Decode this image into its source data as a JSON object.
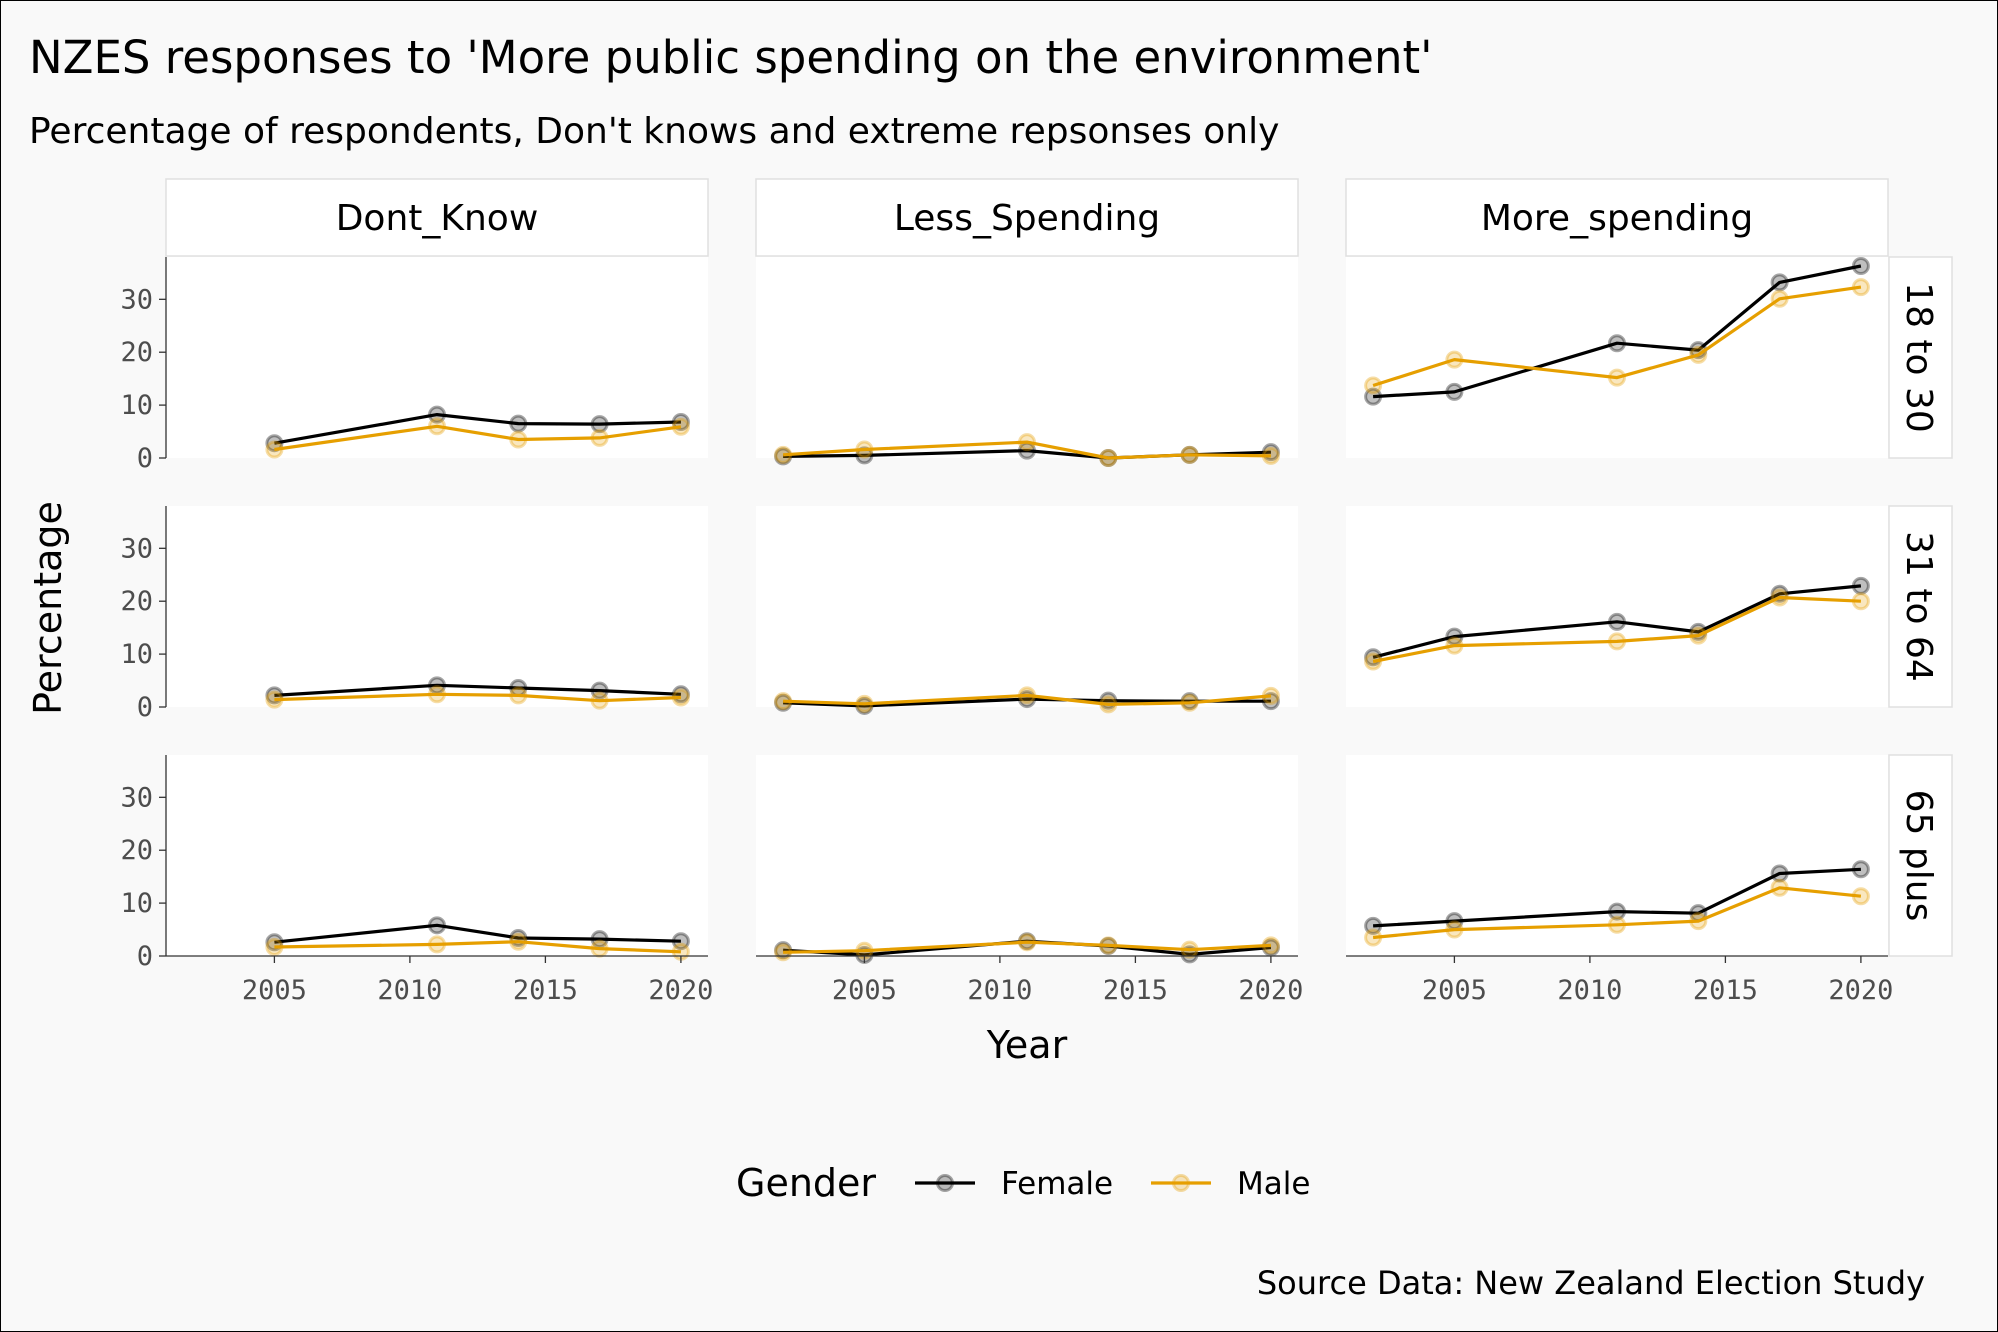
{
  "chart_data": {
    "type": "line",
    "title": "NZES responses to 'More public spending on the environment'",
    "subtitle": "Percentage of respondents, Don't knows and extreme repsonses only",
    "caption": "Source Data: New Zealand Election Study",
    "xlabel": "Year",
    "ylabel": "Percentage",
    "xlim": [
      2001,
      2021
    ],
    "ylim": [
      0,
      38
    ],
    "x_ticks": [
      2005,
      2010,
      2015,
      2020
    ],
    "y_ticks": [
      0,
      10,
      20,
      30
    ],
    "legend": {
      "title": "Gender",
      "position": "bottom",
      "entries": [
        "Female",
        "Male"
      ]
    },
    "colors": {
      "Female": "#000000",
      "Male": "#e69f00"
    },
    "facet_columns": [
      "Dont_Know",
      "Less_Spending",
      "More_spending"
    ],
    "facet_rows": [
      "18 to 30",
      "31 to 64",
      "65 plus"
    ],
    "panels": [
      {
        "row": "18 to 30",
        "col": "Dont_Know",
        "series": [
          {
            "name": "Female",
            "x": [
              2005,
              2011,
              2014,
              2017,
              2020
            ],
            "y": [
              2.8,
              8.2,
              6.5,
              6.4,
              6.8
            ]
          },
          {
            "name": "Male",
            "x": [
              2005,
              2011,
              2014,
              2017,
              2020
            ],
            "y": [
              1.6,
              6.0,
              3.5,
              3.8,
              5.9
            ]
          }
        ]
      },
      {
        "row": "18 to 30",
        "col": "Less_Spending",
        "series": [
          {
            "name": "Female",
            "x": [
              2002,
              2005,
              2011,
              2014,
              2017,
              2020
            ],
            "y": [
              0.3,
              0.5,
              1.4,
              0.0,
              0.6,
              1.1
            ]
          },
          {
            "name": "Male",
            "x": [
              2002,
              2005,
              2011,
              2014,
              2017,
              2020
            ],
            "y": [
              0.6,
              1.6,
              3.0,
              0.0,
              0.6,
              0.4
            ]
          }
        ]
      },
      {
        "row": "18 to 30",
        "col": "More_spending",
        "series": [
          {
            "name": "Female",
            "x": [
              2002,
              2005,
              2011,
              2014,
              2017,
              2020
            ],
            "y": [
              11.6,
              12.5,
              21.7,
              20.4,
              33.2,
              36.3
            ]
          },
          {
            "name": "Male",
            "x": [
              2002,
              2005,
              2011,
              2014,
              2017,
              2020
            ],
            "y": [
              13.7,
              18.6,
              15.2,
              19.5,
              30.1,
              32.3
            ]
          }
        ]
      },
      {
        "row": "31 to 64",
        "col": "Dont_Know",
        "series": [
          {
            "name": "Female",
            "x": [
              2005,
              2011,
              2014,
              2017,
              2020
            ],
            "y": [
              2.2,
              4.1,
              3.6,
              3.1,
              2.4
            ]
          },
          {
            "name": "Male",
            "x": [
              2005,
              2011,
              2014,
              2017,
              2020
            ],
            "y": [
              1.4,
              2.4,
              2.2,
              1.2,
              1.8
            ]
          }
        ]
      },
      {
        "row": "31 to 64",
        "col": "Less_Spending",
        "series": [
          {
            "name": "Female",
            "x": [
              2002,
              2005,
              2011,
              2014,
              2017,
              2020
            ],
            "y": [
              0.8,
              0.2,
              1.5,
              1.2,
              1.1,
              1.1
            ]
          },
          {
            "name": "Male",
            "x": [
              2002,
              2005,
              2011,
              2014,
              2017,
              2020
            ],
            "y": [
              1.1,
              0.6,
              2.2,
              0.5,
              0.8,
              2.1
            ]
          }
        ]
      },
      {
        "row": "31 to 64",
        "col": "More_spending",
        "series": [
          {
            "name": "Female",
            "x": [
              2002,
              2005,
              2011,
              2014,
              2017,
              2020
            ],
            "y": [
              9.4,
              13.3,
              16.1,
              14.2,
              21.4,
              22.9
            ]
          },
          {
            "name": "Male",
            "x": [
              2002,
              2005,
              2011,
              2014,
              2017,
              2020
            ],
            "y": [
              8.6,
              11.6,
              12.4,
              13.5,
              20.7,
              20.0
            ]
          }
        ]
      },
      {
        "row": "65 plus",
        "col": "Dont_Know",
        "series": [
          {
            "name": "Female",
            "x": [
              2005,
              2011,
              2014,
              2017,
              2020
            ],
            "y": [
              2.6,
              5.8,
              3.4,
              3.2,
              2.8
            ]
          },
          {
            "name": "Male",
            "x": [
              2005,
              2011,
              2014,
              2017,
              2020
            ],
            "y": [
              1.7,
              2.2,
              2.7,
              1.4,
              0.8
            ]
          }
        ]
      },
      {
        "row": "65 plus",
        "col": "Less_Spending",
        "series": [
          {
            "name": "Female",
            "x": [
              2002,
              2005,
              2011,
              2014,
              2017,
              2020
            ],
            "y": [
              1.1,
              0.2,
              2.8,
              1.9,
              0.3,
              1.6
            ]
          },
          {
            "name": "Male",
            "x": [
              2002,
              2005,
              2011,
              2014,
              2017,
              2020
            ],
            "y": [
              0.7,
              1.0,
              2.6,
              2.0,
              1.2,
              2.0
            ]
          }
        ]
      },
      {
        "row": "65 plus",
        "col": "More_spending",
        "series": [
          {
            "name": "Female",
            "x": [
              2002,
              2005,
              2011,
              2014,
              2017,
              2020
            ],
            "y": [
              5.7,
              6.6,
              8.4,
              8.1,
              15.6,
              16.4
            ]
          },
          {
            "name": "Male",
            "x": [
              2002,
              2005,
              2011,
              2014,
              2017,
              2020
            ],
            "y": [
              3.5,
              5.0,
              5.9,
              6.6,
              12.9,
              11.3
            ]
          }
        ]
      }
    ]
  }
}
